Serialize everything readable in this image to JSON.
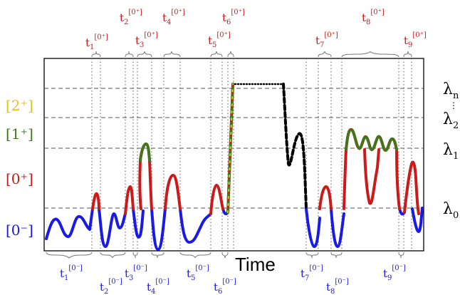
{
  "colors": {
    "blue": "#1a1ae6",
    "red": "#cc1a1a",
    "green": "#3b7a1a",
    "gold": "#e8c018",
    "black": "#000000",
    "grid": "#555555"
  },
  "xaxis": {
    "label": "Time"
  },
  "states": [
    {
      "id": "2plus",
      "label": "[2⁺]",
      "color_key": "gold"
    },
    {
      "id": "1plus",
      "label": "[1⁺]",
      "color_key": "green"
    },
    {
      "id": "0plus",
      "label": "[0⁺]",
      "color_key": "red"
    },
    {
      "id": "0minus",
      "label": "[0⁻]",
      "color_key": "blue"
    }
  ],
  "thresholds": [
    {
      "id": "n",
      "base": "λ",
      "sub": "n"
    },
    {
      "id": "2",
      "base": "λ",
      "sub": "2"
    },
    {
      "id": "1",
      "base": "λ",
      "sub": "1"
    },
    {
      "id": "0",
      "base": "λ",
      "sub": "0"
    }
  ],
  "intervals_plus": [
    {
      "base": "t",
      "sub": "1",
      "sup": "[0⁺]"
    },
    {
      "base": "t",
      "sub": "2",
      "sup": "[0⁺]"
    },
    {
      "base": "t",
      "sub": "3",
      "sup": "[0⁺]"
    },
    {
      "base": "t",
      "sub": "4",
      "sup": "[0⁺]"
    },
    {
      "base": "t",
      "sub": "5",
      "sup": "[0⁺]"
    },
    {
      "base": "t",
      "sub": "6",
      "sup": "[0⁺]"
    },
    {
      "base": "t",
      "sub": "7",
      "sup": "[0⁺]"
    },
    {
      "base": "t",
      "sub": "8",
      "sup": "[0⁺]"
    },
    {
      "base": "t",
      "sub": "9",
      "sup": "[0⁺]"
    }
  ],
  "intervals_minus": [
    {
      "base": "t",
      "sub": "1",
      "sup": "[0⁻]"
    },
    {
      "base": "t",
      "sub": "2",
      "sup": "[0⁻]"
    },
    {
      "base": "t",
      "sub": "3",
      "sup": "[0⁻]"
    },
    {
      "base": "t",
      "sub": "4",
      "sup": "[0⁻]"
    },
    {
      "base": "t",
      "sub": "5",
      "sup": "[0⁻]"
    },
    {
      "base": "t",
      "sub": "6",
      "sup": "[0⁻]"
    },
    {
      "base": "t",
      "sub": "7",
      "sup": "[0⁻]"
    },
    {
      "base": "t",
      "sub": "8",
      "sup": "[0⁻]"
    },
    {
      "base": "t",
      "sub": "9",
      "sup": "[0⁻]"
    }
  ]
}
